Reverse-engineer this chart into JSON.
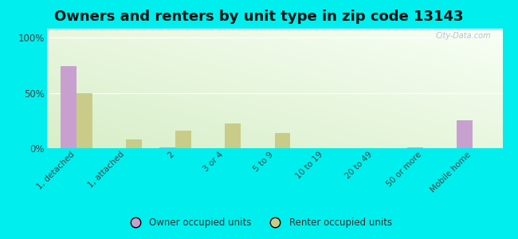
{
  "title": "Owners and renters by unit type in zip code 13143",
  "categories": [
    "1, detached",
    "1, attached",
    "2",
    "3 or 4",
    "5 to 9",
    "10 to 19",
    "20 to 49",
    "50 or more",
    "Mobile home"
  ],
  "owner_values": [
    74,
    0,
    1,
    0,
    0,
    0,
    0,
    1,
    25
  ],
  "renter_values": [
    50,
    8,
    16,
    22,
    14,
    0,
    0,
    0,
    0
  ],
  "owner_color": "#c8a0d0",
  "renter_color": "#c8cc88",
  "background_color": "#00eeee",
  "title_fontsize": 13,
  "yticks": [
    0,
    50,
    100
  ],
  "ylim": [
    0,
    108
  ],
  "watermark": "City-Data.com",
  "legend_labels": [
    "Owner occupied units",
    "Renter occupied units"
  ],
  "grad_color_topleft": "#e8f5e8",
  "grad_color_topright": "#f8fff5",
  "grad_color_bottom": "#d8eec8"
}
